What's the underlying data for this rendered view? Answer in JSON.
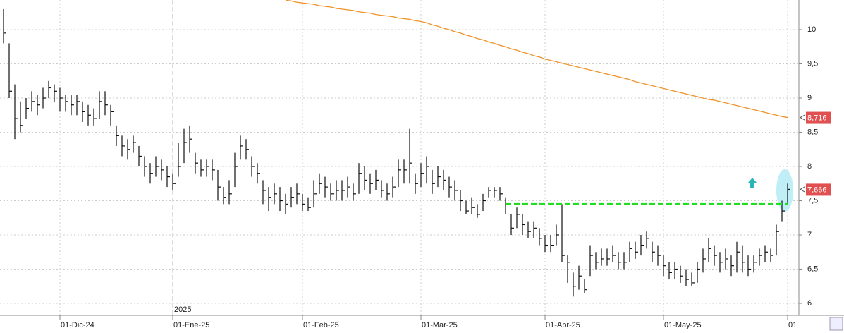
{
  "chart_data": {
    "type": "ohlc",
    "categories": [
      null,
      null,
      null,
      null,
      null,
      null,
      null,
      null,
      null,
      null,
      "01-Dic-24",
      null,
      null,
      null,
      null,
      null,
      null,
      null,
      null,
      null,
      null,
      null,
      null,
      null,
      null,
      null,
      null,
      null,
      null,
      null,
      "01-Ene-25",
      null,
      null,
      null,
      null,
      null,
      null,
      null,
      null,
      null,
      null,
      null,
      null,
      null,
      null,
      null,
      null,
      null,
      null,
      null,
      null,
      null,
      null,
      "01-Feb-25",
      null,
      null,
      null,
      null,
      null,
      null,
      null,
      null,
      null,
      null,
      null,
      null,
      null,
      null,
      null,
      null,
      null,
      null,
      null,
      null,
      "01-Mar-25",
      null,
      null,
      null,
      null,
      null,
      null,
      null,
      null,
      null,
      null,
      null,
      null,
      null,
      null,
      null,
      null,
      null,
      null,
      null,
      null,
      null,
      "01-Abr-25",
      null,
      null,
      null,
      null,
      null,
      null,
      null,
      null,
      null,
      null,
      null,
      null,
      null,
      null,
      null,
      null,
      null,
      null,
      null,
      null,
      "01-May-25",
      null,
      null,
      null,
      null,
      null,
      null,
      null,
      null,
      null,
      null,
      null,
      null,
      null,
      null,
      null,
      null,
      null,
      null,
      null,
      null,
      null,
      "01"
    ],
    "year_label": {
      "index": 30,
      "label": "2025"
    },
    "high": [
      10.3,
      9.8,
      9.2,
      8.95,
      9.0,
      9.1,
      9.05,
      9.15,
      9.25,
      9.2,
      9.15,
      9.05,
      9.05,
      9.05,
      8.95,
      8.9,
      8.85,
      9.1,
      9.1,
      8.9,
      8.6,
      8.45,
      8.4,
      8.45,
      8.3,
      8.15,
      8.05,
      8.15,
      8.1,
      8.0,
      7.9,
      8.35,
      8.55,
      8.6,
      8.2,
      8.1,
      8.1,
      8.1,
      7.95,
      7.7,
      7.8,
      8.2,
      8.45,
      8.4,
      8.15,
      8.05,
      7.8,
      7.7,
      7.75,
      7.7,
      7.6,
      7.7,
      7.75,
      7.6,
      7.55,
      7.8,
      7.9,
      7.85,
      7.75,
      7.8,
      7.8,
      7.85,
      7.75,
      8.05,
      8.0,
      7.9,
      7.95,
      7.8,
      7.75,
      7.85,
      8.1,
      8.1,
      8.55,
      7.9,
      8.05,
      8.15,
      7.95,
      8.0,
      7.95,
      7.85,
      7.8,
      7.65,
      7.5,
      7.55,
      7.45,
      7.6,
      7.7,
      7.7,
      7.7,
      7.55,
      7.3,
      7.4,
      7.3,
      7.2,
      7.2,
      7.1,
      7.0,
      7.0,
      7.15,
      7.45,
      6.7,
      6.45,
      6.55,
      6.35,
      6.85,
      6.75,
      6.8,
      6.8,
      6.85,
      6.75,
      6.75,
      6.9,
      6.9,
      7.0,
      7.05,
      6.9,
      6.85,
      6.7,
      6.6,
      6.6,
      6.55,
      6.5,
      6.45,
      6.6,
      6.8,
      6.95,
      6.85,
      6.75,
      6.8,
      6.7,
      6.9,
      6.85,
      6.7,
      6.7,
      6.8,
      6.85,
      6.8,
      7.15,
      7.5,
      7.75
    ],
    "low": [
      9.8,
      9.0,
      8.4,
      8.5,
      8.7,
      8.8,
      8.75,
      8.85,
      9.0,
      8.95,
      8.8,
      8.8,
      8.75,
      8.75,
      8.65,
      8.6,
      8.6,
      8.7,
      8.75,
      8.6,
      8.3,
      8.15,
      8.1,
      8.2,
      8.0,
      7.85,
      7.75,
      7.85,
      7.8,
      7.7,
      7.65,
      7.85,
      8.05,
      8.2,
      7.9,
      7.85,
      7.85,
      7.8,
      7.5,
      7.45,
      7.45,
      7.7,
      8.1,
      8.1,
      7.85,
      7.75,
      7.45,
      7.35,
      7.45,
      7.35,
      7.3,
      7.4,
      7.45,
      7.35,
      7.35,
      7.4,
      7.6,
      7.55,
      7.5,
      7.5,
      7.5,
      7.55,
      7.5,
      7.6,
      7.65,
      7.6,
      7.65,
      7.55,
      7.5,
      7.55,
      7.7,
      7.75,
      7.75,
      7.6,
      7.7,
      7.75,
      7.6,
      7.7,
      7.65,
      7.55,
      7.5,
      7.35,
      7.3,
      7.3,
      7.25,
      7.35,
      7.55,
      7.55,
      7.5,
      7.3,
      7.0,
      7.1,
      7.0,
      6.95,
      6.95,
      6.85,
      6.75,
      6.75,
      6.85,
      6.6,
      6.3,
      6.1,
      6.2,
      6.15,
      6.4,
      6.5,
      6.55,
      6.55,
      6.6,
      6.5,
      6.5,
      6.6,
      6.65,
      6.7,
      6.8,
      6.6,
      6.55,
      6.4,
      6.35,
      6.35,
      6.3,
      6.25,
      6.25,
      6.3,
      6.45,
      6.6,
      6.55,
      6.45,
      6.5,
      6.4,
      6.45,
      6.45,
      6.4,
      6.45,
      6.55,
      6.6,
      6.6,
      6.7,
      7.2,
      7.45
    ],
    "close": [
      9.95,
      9.1,
      8.7,
      8.6,
      8.85,
      8.95,
      8.9,
      9.0,
      9.15,
      9.1,
      9.0,
      8.95,
      8.9,
      8.95,
      8.8,
      8.75,
      8.7,
      8.95,
      8.9,
      8.8,
      8.45,
      8.3,
      8.25,
      8.35,
      8.15,
      8.0,
      7.9,
      8.0,
      7.95,
      7.85,
      7.75,
      8.0,
      8.35,
      8.4,
      8.05,
      7.95,
      8.0,
      7.95,
      7.7,
      7.55,
      7.6,
      8.0,
      8.3,
      8.25,
      8.0,
      7.9,
      7.65,
      7.55,
      7.6,
      7.5,
      7.45,
      7.55,
      7.6,
      7.45,
      7.4,
      7.6,
      7.75,
      7.7,
      7.6,
      7.65,
      7.65,
      7.7,
      7.6,
      7.9,
      7.8,
      7.75,
      7.8,
      7.65,
      7.6,
      7.7,
      7.95,
      7.95,
      8.05,
      7.75,
      7.9,
      8.0,
      7.75,
      7.85,
      7.8,
      7.7,
      7.65,
      7.5,
      7.35,
      7.4,
      7.3,
      7.5,
      7.65,
      7.65,
      7.6,
      7.45,
      7.1,
      7.3,
      7.15,
      7.05,
      7.1,
      6.95,
      6.85,
      6.85,
      7.0,
      6.7,
      6.6,
      6.25,
      6.4,
      6.2,
      6.7,
      6.6,
      6.65,
      6.65,
      6.7,
      6.6,
      6.6,
      6.8,
      6.75,
      6.85,
      6.95,
      6.75,
      6.7,
      6.55,
      6.45,
      6.5,
      6.4,
      6.35,
      6.3,
      6.5,
      6.65,
      6.8,
      6.7,
      6.6,
      6.65,
      6.55,
      6.75,
      6.6,
      6.5,
      6.6,
      6.7,
      6.75,
      6.7,
      7.05,
      7.35,
      7.666
    ],
    "bar_color": "#111111",
    "moving_average": {
      "color": "#f0932b",
      "values": [
        null,
        null,
        null,
        null,
        null,
        null,
        null,
        null,
        null,
        null,
        null,
        null,
        null,
        null,
        null,
        null,
        null,
        null,
        null,
        null,
        null,
        null,
        null,
        null,
        null,
        null,
        null,
        null,
        null,
        null,
        null,
        null,
        null,
        null,
        null,
        null,
        null,
        null,
        null,
        null,
        null,
        null,
        null,
        null,
        null,
        null,
        null,
        null,
        null,
        null,
        10.43,
        10.42,
        10.4,
        10.39,
        10.38,
        10.37,
        10.35,
        10.34,
        10.33,
        10.31,
        10.3,
        10.29,
        10.28,
        10.26,
        10.25,
        10.24,
        10.22,
        10.21,
        10.2,
        10.19,
        10.17,
        10.16,
        10.15,
        10.13,
        10.12,
        10.1,
        10.07,
        10.05,
        10.02,
        10.0,
        9.97,
        9.95,
        9.92,
        9.9,
        9.87,
        9.85,
        9.82,
        9.8,
        9.77,
        9.75,
        9.72,
        9.7,
        9.67,
        9.65,
        9.62,
        9.6,
        9.57,
        9.55,
        9.53,
        9.51,
        9.49,
        9.47,
        9.45,
        9.43,
        9.41,
        9.39,
        9.37,
        9.35,
        9.33,
        9.31,
        9.29,
        9.27,
        9.24,
        9.22,
        9.2,
        9.18,
        9.16,
        9.14,
        9.12,
        9.1,
        9.08,
        9.06,
        9.04,
        9.02,
        9.0,
        8.98,
        8.97,
        8.95,
        8.93,
        8.91,
        8.89,
        8.87,
        8.85,
        8.83,
        8.81,
        8.79,
        8.77,
        8.75,
        8.73,
        8.716
      ]
    },
    "level_line": {
      "value": 7.45,
      "start_index": 89,
      "color": "#22dd22"
    },
    "price_tags": [
      {
        "value": 8.716,
        "label": "8,716"
      },
      {
        "value": 7.666,
        "label": "7,666"
      }
    ],
    "tag_color": "#e05050",
    "ylim": [
      5.825,
      10.433
    ],
    "yticks": [
      6,
      {
        "value": 6.5,
        "label": "6,5"
      },
      7,
      {
        "value": 7.5,
        "label": "7,5"
      },
      8,
      {
        "value": 8.5,
        "label": "8,5"
      },
      9,
      {
        "value": 9.5,
        "label": "9,5"
      },
      10
    ],
    "grid": true
  }
}
